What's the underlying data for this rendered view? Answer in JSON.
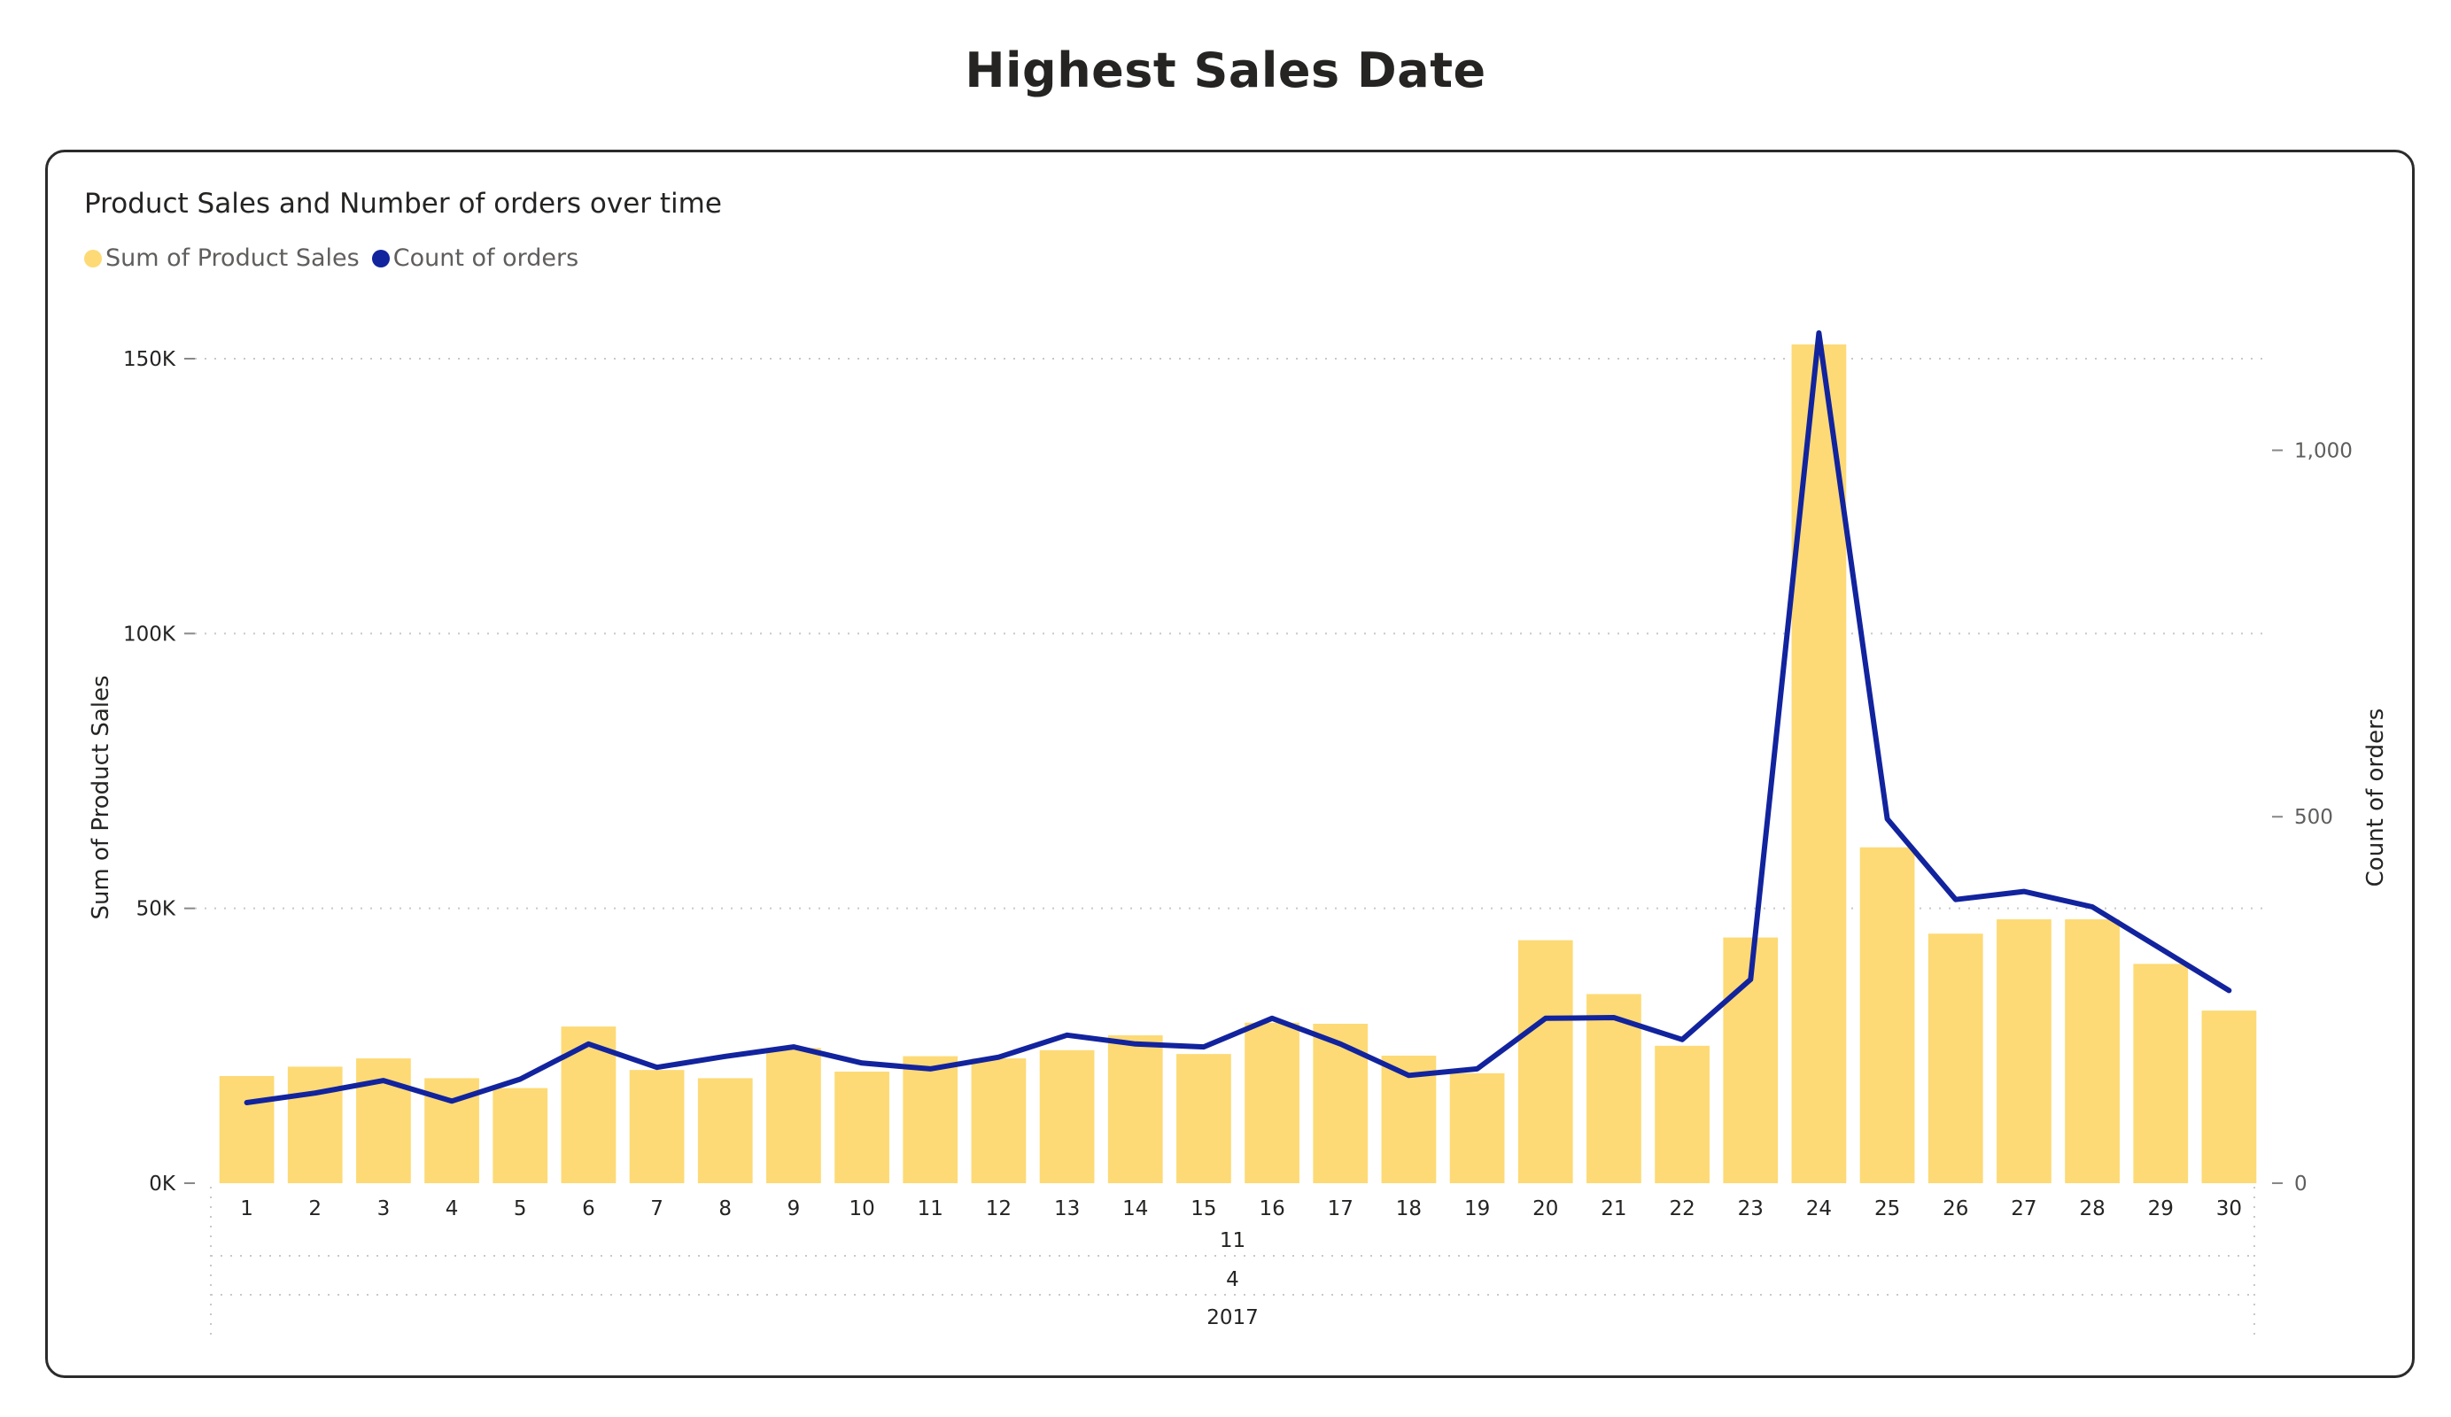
{
  "page": {
    "title": "Highest Sales Date"
  },
  "colors": {
    "bar": "#FDDA75",
    "line": "#12239E",
    "grid": "#c8c8c8"
  },
  "chart_data": {
    "type": "bar",
    "title": "Product Sales and Number of orders over time",
    "legend": [
      {
        "name": "Sum of Product Sales",
        "color": "#FDDA75"
      },
      {
        "name": "Count of orders",
        "color": "#12239E"
      }
    ],
    "legend_position": "top-left",
    "ylabel": "Sum of Product Sales",
    "y2label": "Count of orders",
    "ylim": [
      0,
      150000
    ],
    "y2lim": [
      0,
      1125
    ],
    "yticks": [
      {
        "value": 0,
        "label": "0K"
      },
      {
        "value": 50000,
        "label": "50K"
      },
      {
        "value": 100000,
        "label": "100K"
      },
      {
        "value": 150000,
        "label": "150K"
      }
    ],
    "y2ticks": [
      {
        "value": 0,
        "label": "0"
      },
      {
        "value": 500,
        "label": "500"
      },
      {
        "value": 1000,
        "label": "1,000"
      }
    ],
    "grid": true,
    "categories": [
      "1",
      "2",
      "3",
      "4",
      "5",
      "6",
      "7",
      "8",
      "9",
      "10",
      "11",
      "12",
      "13",
      "14",
      "15",
      "16",
      "17",
      "18",
      "19",
      "20",
      "21",
      "22",
      "23",
      "24",
      "25",
      "26",
      "27",
      "28",
      "29",
      "30"
    ],
    "hierarchy_labels": {
      "month": "11",
      "quarter": "4",
      "year": "2017"
    },
    "series": [
      {
        "name": "Sum of Product Sales",
        "type": "bar",
        "axis": "left",
        "values": [
          19500,
          21200,
          22700,
          19100,
          17300,
          28500,
          20600,
          19100,
          24600,
          20300,
          23100,
          22700,
          24200,
          26900,
          23500,
          29200,
          29000,
          23200,
          20000,
          44200,
          34400,
          25000,
          44700,
          152600,
          61100,
          45400,
          48000,
          48000,
          39900,
          31400
        ]
      },
      {
        "name": "Count of orders",
        "type": "line",
        "axis": "right",
        "values": [
          110,
          123,
          140,
          112,
          142,
          190,
          158,
          173,
          186,
          164,
          156,
          172,
          202,
          190,
          186,
          225,
          190,
          147,
          156,
          225,
          226,
          196,
          278,
          1160,
          497,
          387,
          398,
          377,
          320,
          263
        ]
      }
    ]
  }
}
